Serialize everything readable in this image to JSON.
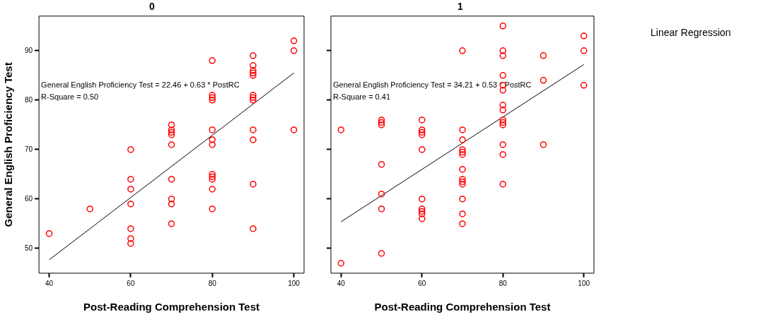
{
  "chart_data": [
    {
      "type": "scatter",
      "title": "0",
      "xlabel": "Post-Reading Comprehension Test",
      "ylabel": "General English Proficiency Test",
      "xlim": [
        37.5,
        102.5
      ],
      "xticks": [
        40,
        60,
        80,
        100
      ],
      "ylim": [
        45,
        97
      ],
      "yticks": [
        50,
        60,
        70,
        80,
        90
      ],
      "grid": false,
      "legend": false,
      "marker": "circle",
      "annotations": [
        "General English Proficiency Test = 22.46 + 0.63 * PostRC",
        "R-Square = 0.50"
      ],
      "series": [
        {
          "type": "scatter",
          "color": "#ff0000",
          "x": [
            40,
            50,
            60,
            60,
            60,
            60,
            60,
            60,
            60,
            70,
            70,
            70,
            70,
            70,
            70,
            70,
            70,
            70,
            80,
            80,
            80,
            80,
            80,
            80,
            80,
            80,
            80,
            80,
            80,
            80,
            90,
            90,
            90,
            90,
            90,
            90,
            90,
            90,
            90,
            90,
            90,
            90,
            100,
            100,
            100
          ],
          "values": [
            53,
            58,
            70,
            64,
            62,
            59,
            54,
            52,
            51,
            75,
            74,
            73.5,
            73,
            71,
            64,
            60,
            59,
            55,
            88,
            81,
            80.5,
            80,
            74,
            72,
            71,
            65,
            64.5,
            64,
            62,
            58,
            89,
            87,
            86,
            85.5,
            85,
            81,
            80.5,
            80,
            74,
            72,
            63,
            54,
            92,
            90,
            74
          ]
        },
        {
          "type": "line",
          "color": "#000000",
          "marker": "none",
          "x": [
            40,
            100
          ],
          "values": [
            47.7,
            85.5
          ]
        }
      ]
    },
    {
      "type": "scatter",
      "title": "1",
      "xlabel": "Post-Reading Comprehension Test",
      "legend_title": "Linear Regression",
      "xlim": [
        37.5,
        102.5
      ],
      "xticks": [
        40,
        60,
        80,
        100
      ],
      "ylim": [
        45,
        97
      ],
      "yticks": [
        50,
        60,
        70,
        80,
        90
      ],
      "tick_labels": "x",
      "grid": false,
      "legend": false,
      "marker": "circle",
      "annotations": [
        "General English Proficiency Test = 34.21 + 0.53 * PostRC",
        "R-Square = 0.41"
      ],
      "series": [
        {
          "type": "scatter",
          "color": "#ff0000",
          "x": [
            40,
            40,
            50,
            50,
            50,
            50,
            50,
            50,
            50,
            60,
            60,
            60,
            60,
            60,
            60,
            60,
            60,
            60,
            60,
            70,
            70,
            70,
            70,
            70,
            70,
            70,
            70,
            70,
            70,
            70,
            70,
            70,
            80,
            80,
            80,
            80,
            80,
            80,
            80,
            80,
            80,
            80,
            80,
            80,
            80,
            80,
            90,
            90,
            90,
            100,
            100,
            100
          ],
          "values": [
            74,
            47,
            76,
            75.5,
            75,
            67,
            61,
            58,
            49,
            76,
            74,
            73.5,
            73,
            70,
            60,
            58,
            57.5,
            57,
            56,
            90,
            74,
            72,
            70,
            69.5,
            69,
            66,
            64,
            63.5,
            63,
            60,
            57,
            55,
            95,
            90,
            89,
            85,
            83,
            82,
            79,
            78,
            76,
            75.5,
            75,
            71,
            69,
            63,
            89,
            84,
            71,
            93,
            90,
            83
          ]
        },
        {
          "type": "line",
          "color": "#000000",
          "marker": "none",
          "x": [
            40,
            100
          ],
          "values": [
            55.4,
            87.2
          ]
        }
      ]
    }
  ]
}
